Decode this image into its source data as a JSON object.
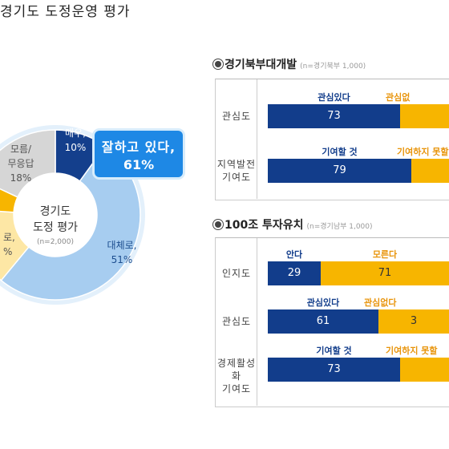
{
  "left": {
    "title": "경기도 도정운영 평가",
    "center_title_1": "경기도",
    "center_title_2": "도정 평가",
    "center_note": "(n=2,000)",
    "callout_1": "잘하고 있다,",
    "callout_2": "61%"
  },
  "north": {
    "title": "경기북부대개발",
    "note": "(n=경기북부 1,000)"
  },
  "south": {
    "title": "100조 투자유치",
    "note": "(n=경기남부 1,000)"
  },
  "chart_data": [
    {
      "type": "pie",
      "title": "경기도 도정운영 평가",
      "slices": [
        {
          "label_1": "매우,",
          "label_2": "10%",
          "value": 10,
          "color": "#143f8c"
        },
        {
          "label_1": "대체로,",
          "label_2": "51%",
          "value": 51,
          "color": "#a7cdf0"
        },
        {
          "label_1": "로,",
          "label_2": "%",
          "value": 15,
          "color": "#fde7a5"
        },
        {
          "label_1": "",
          "label_2": "",
          "value": 6,
          "color": "#f7b500"
        },
        {
          "label_1": "모름/",
          "label_2": "무응답",
          "label_3": "18%",
          "value": 18,
          "color": "#d6d6d6"
        }
      ]
    },
    {
      "type": "bar",
      "title": "경기북부대개발",
      "rows": [
        {
          "label_1": "관심도",
          "label_2": "",
          "caption_a": "관심있다",
          "caption_b": "관심없",
          "a": 73
        },
        {
          "label_1": "지역발전",
          "label_2": "기여도",
          "caption_a": "기여할 것",
          "caption_b": "기여하지 못할",
          "a": 79
        }
      ]
    },
    {
      "type": "bar",
      "title": "100조 투자유치",
      "rows": [
        {
          "label_1": "인지도",
          "label_2": "",
          "caption_a": "안다",
          "caption_b": "모른다",
          "a": 29,
          "b": 71
        },
        {
          "label_1": "관심도",
          "label_2": "",
          "caption_a": "관심있다",
          "caption_b": "관심없다",
          "a": 61,
          "b": 3
        },
        {
          "label_1": "경제활성화",
          "label_2": "기여도",
          "caption_a": "기여할 것",
          "caption_b": "기여하지 못할",
          "a": 73
        }
      ]
    }
  ]
}
